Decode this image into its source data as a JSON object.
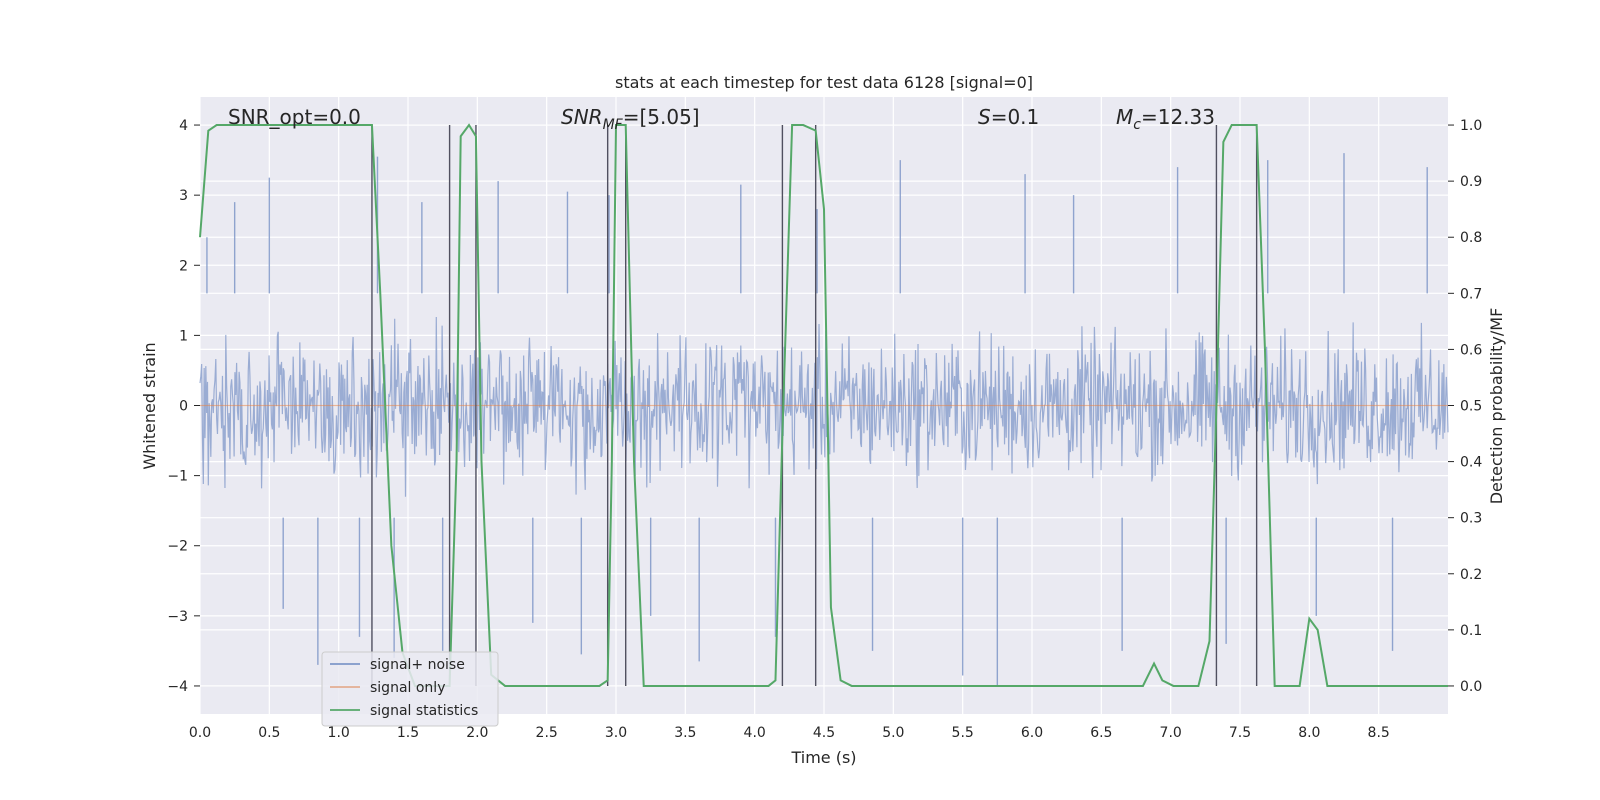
{
  "chart_data": {
    "type": "line",
    "title": "stats at each timestep for test data 6128 [signal=0]",
    "xlabel": "Time (s)",
    "ylabel_left": "Whitened strain",
    "ylabel_right": "Detection probability/MF",
    "xlim": [
      0.0,
      9.0
    ],
    "ylim_left": [
      -4.4,
      4.4
    ],
    "ylim_right": [
      -0.05,
      1.05
    ],
    "x_ticks": [
      "0.0",
      "0.5",
      "1.0",
      "1.5",
      "2.0",
      "2.5",
      "3.0",
      "3.5",
      "4.0",
      "4.5",
      "5.0",
      "5.5",
      "6.0",
      "6.5",
      "7.0",
      "7.5",
      "8.0",
      "8.5"
    ],
    "y_ticks_left": [
      "4",
      "3",
      "2",
      "1",
      "0",
      "−1",
      "−2",
      "−3",
      "−4"
    ],
    "y_ticks_right": [
      "1.0",
      "0.9",
      "0.8",
      "0.7",
      "0.6",
      "0.5",
      "0.4",
      "0.3",
      "0.2",
      "0.1",
      "0.0"
    ],
    "grid": true,
    "legend_position": "lower-left",
    "annotations": {
      "snr_opt": "SNR_opt=0.0",
      "snr_mf_main": "SNR",
      "snr_mf_sub": "MF",
      "snr_mf_value": "=[5.05]",
      "s_main": "S",
      "s_value": "=0.1",
      "mc_main": "M",
      "mc_sub": "c",
      "mc_value": "=12.33"
    },
    "series": [
      {
        "name": "signal+ noise",
        "axis": "left",
        "style": "noise-band",
        "color": "#7f97c8",
        "typical_range": [
          -1.6,
          1.6
        ],
        "spikes": [
          [
            0.05,
            2.4
          ],
          [
            0.25,
            2.9
          ],
          [
            0.5,
            3.25
          ],
          [
            0.6,
            -2.9
          ],
          [
            0.85,
            -3.7
          ],
          [
            1.15,
            -3.3
          ],
          [
            1.28,
            3.55
          ],
          [
            1.4,
            -3.6
          ],
          [
            1.6,
            2.9
          ],
          [
            1.75,
            -3.5
          ],
          [
            2.15,
            3.2
          ],
          [
            2.4,
            -3.1
          ],
          [
            2.65,
            3.05
          ],
          [
            2.75,
            -3.55
          ],
          [
            2.95,
            3.0
          ],
          [
            3.25,
            -3.0
          ],
          [
            3.6,
            -3.65
          ],
          [
            3.9,
            3.15
          ],
          [
            4.15,
            -3.3
          ],
          [
            4.45,
            2.8
          ],
          [
            4.85,
            -3.5
          ],
          [
            5.05,
            3.5
          ],
          [
            5.5,
            -3.85
          ],
          [
            5.75,
            -4.0
          ],
          [
            5.95,
            3.3
          ],
          [
            6.3,
            3.0
          ],
          [
            6.65,
            -3.5
          ],
          [
            7.05,
            3.4
          ],
          [
            7.4,
            -3.4
          ],
          [
            7.7,
            3.5
          ],
          [
            8.05,
            -3.0
          ],
          [
            8.25,
            3.6
          ],
          [
            8.6,
            -3.5
          ],
          [
            8.85,
            3.4
          ]
        ]
      },
      {
        "name": "signal only",
        "axis": "left",
        "color": "#dd8452",
        "x": [
          0.0,
          9.0
        ],
        "y": [
          0.0,
          0.0
        ]
      },
      {
        "name": "signal statistics",
        "axis": "right",
        "color": "#55a868",
        "x": [
          0.0,
          0.06,
          0.12,
          0.3,
          0.6,
          0.9,
          1.2,
          1.24,
          1.3,
          1.38,
          1.46,
          1.55,
          1.65,
          1.75,
          1.8,
          1.85,
          1.88,
          1.94,
          1.99,
          2.03,
          2.1,
          2.2,
          2.5,
          2.8,
          2.88,
          2.94,
          2.97,
          3.0,
          3.07,
          3.13,
          3.2,
          3.5,
          3.8,
          4.1,
          4.15,
          4.2,
          4.27,
          4.35,
          4.44,
          4.5,
          4.55,
          4.62,
          4.7,
          5.0,
          5.5,
          6.0,
          6.5,
          6.8,
          6.88,
          6.94,
          7.02,
          7.2,
          7.28,
          7.33,
          7.38,
          7.44,
          7.5,
          7.62,
          7.68,
          7.75,
          7.85,
          7.93,
          8.0,
          8.06,
          8.13,
          8.3,
          8.6,
          8.9,
          9.0
        ],
        "y": [
          0.8,
          0.99,
          1.0,
          1.0,
          1.0,
          1.0,
          1.0,
          1.0,
          0.7,
          0.25,
          0.06,
          0.0,
          0.0,
          0.0,
          0.0,
          0.4,
          0.98,
          1.0,
          0.98,
          0.4,
          0.02,
          0.0,
          0.0,
          0.0,
          0.0,
          0.01,
          0.4,
          1.0,
          1.0,
          0.4,
          0.0,
          0.0,
          0.0,
          0.0,
          0.01,
          0.45,
          1.0,
          1.0,
          0.99,
          0.85,
          0.14,
          0.01,
          0.0,
          0.0,
          0.0,
          0.0,
          0.0,
          0.0,
          0.04,
          0.01,
          0.0,
          0.0,
          0.08,
          0.5,
          0.97,
          1.0,
          1.0,
          1.0,
          0.6,
          0.0,
          0.0,
          0.0,
          0.12,
          0.1,
          0.0,
          0.0,
          0.0,
          0.0,
          0.0
        ]
      }
    ],
    "vertical_lines": {
      "axis": "right",
      "color": "#505060",
      "segments": [
        [
          1.24,
          0.0,
          1.0
        ],
        [
          1.8,
          0.0,
          1.0
        ],
        [
          1.99,
          0.0,
          1.0
        ],
        [
          2.94,
          0.0,
          1.0
        ],
        [
          3.07,
          0.0,
          1.0
        ],
        [
          4.2,
          0.0,
          1.0
        ],
        [
          4.44,
          0.0,
          1.0
        ],
        [
          7.33,
          0.0,
          1.0
        ],
        [
          7.62,
          0.0,
          1.0
        ]
      ]
    }
  }
}
